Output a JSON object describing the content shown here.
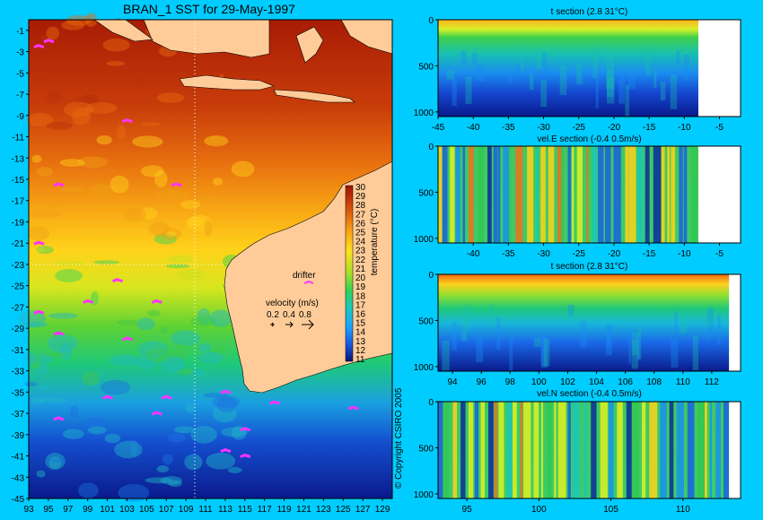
{
  "page": {
    "title": "BRAN_1 SST for 29-May-1997",
    "copyright": "© Copyright CSIRO 2005"
  },
  "colors": {
    "background": "#00ccff",
    "land": "#ffcc99",
    "cold": "#0a1a8c",
    "warm": "#a31a05",
    "drifter": "#ff33ff"
  },
  "chart_data": [
    {
      "type": "heatmap",
      "id": "sst_map",
      "title": "BRAN_1 SST for 29-May-1997",
      "variable": "temperature (°C)",
      "x": {
        "ticks": [
          93,
          95,
          97,
          99,
          101,
          103,
          105,
          107,
          109,
          111,
          113,
          115,
          117,
          119,
          121,
          123,
          125,
          127,
          129
        ],
        "range": [
          93,
          130
        ]
      },
      "y": {
        "ticks": [
          -1,
          -3,
          -5,
          -7,
          -9,
          -11,
          -13,
          -15,
          -17,
          -19,
          -21,
          -23,
          -25,
          -27,
          -29,
          -31,
          -33,
          -35,
          -37,
          -39,
          -41,
          -43,
          -45
        ],
        "range": [
          -45,
          0
        ]
      },
      "colorbar": {
        "label": "temperature (°C)",
        "ticks": [
          30,
          29,
          28,
          27,
          26,
          25,
          24,
          23,
          22,
          21,
          20,
          19,
          18,
          17,
          16,
          15,
          14,
          13,
          12,
          11
        ],
        "range": [
          11,
          30
        ]
      },
      "section_lines": {
        "longitude": 110,
        "latitude": -23
      },
      "legend": {
        "drifter_label": "drifter",
        "velocity_label": "velocity (m/s)",
        "velocity_scale": [
          "0.2",
          "0.4",
          "0.8"
        ]
      },
      "sst_by_latitude": [
        {
          "lat": -1,
          "sst": 29.5
        },
        {
          "lat": -5,
          "sst": 29.2
        },
        {
          "lat": -10,
          "sst": 28.5
        },
        {
          "lat": -15,
          "sst": 27.0
        },
        {
          "lat": -19,
          "sst": 25.5
        },
        {
          "lat": -23,
          "sst": 23.5
        },
        {
          "lat": -27,
          "sst": 21.5
        },
        {
          "lat": -31,
          "sst": 19.5
        },
        {
          "lat": -35,
          "sst": 16.5
        },
        {
          "lat": -39,
          "sst": 14.0
        },
        {
          "lat": -43,
          "sst": 12.5
        },
        {
          "lat": -45,
          "sst": 11.5
        }
      ]
    },
    {
      "type": "heatmap",
      "id": "t_section_lat",
      "title": "t section (2.8      31°C)",
      "x": {
        "ticks": [
          -45,
          -40,
          -35,
          -30,
          -25,
          -20,
          -15,
          -10,
          -5
        ],
        "range": [
          -45,
          -2
        ]
      },
      "y": {
        "ticks": [
          0,
          500,
          1000
        ],
        "range": [
          0,
          1050
        ],
        "reversed": true
      },
      "land_from": -8
    },
    {
      "type": "heatmap",
      "id": "vel_e_section",
      "title": "vel.E section (-0.4      0.5m/s)",
      "x": {
        "ticks": [
          -40,
          -35,
          -30,
          -25,
          -20,
          -15,
          -10,
          -5
        ],
        "range": [
          -45,
          -2
        ]
      },
      "y": {
        "ticks": [
          0,
          500,
          1000
        ],
        "range": [
          0,
          1050
        ],
        "reversed": true
      },
      "land_from": -8
    },
    {
      "type": "heatmap",
      "id": "t_section_lon",
      "title": "t section (2.8      31°C)",
      "x": {
        "ticks": [
          94,
          96,
          98,
          100,
          102,
          104,
          106,
          108,
          110,
          112
        ],
        "range": [
          93,
          114
        ]
      },
      "y": {
        "ticks": [
          0,
          500,
          1000
        ],
        "range": [
          0,
          1050
        ],
        "reversed": true
      },
      "land_from": 113.2
    },
    {
      "type": "heatmap",
      "id": "vel_n_section",
      "title": "vel.N section (-0.4      0.5m/s)",
      "x": {
        "ticks": [
          95,
          100,
          105,
          110
        ],
        "range": [
          93,
          114
        ]
      },
      "y": {
        "ticks": [
          0,
          500,
          1000
        ],
        "range": [
          0,
          1050
        ],
        "reversed": true
      },
      "land_from": 113.2
    }
  ]
}
